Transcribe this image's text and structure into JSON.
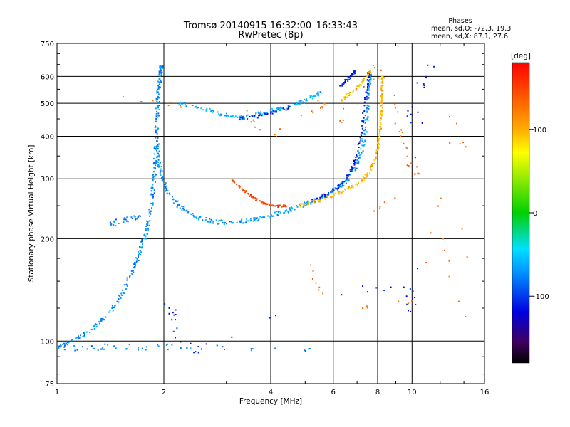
{
  "header": {
    "title": "Tromsø 20140915 16:32:00–16:33:43",
    "subtitle": "RwPretec (8p)",
    "phase_box": {
      "heading": "Phases",
      "line_o": "mean, sd,O: -72.3, 19.3",
      "line_x": "mean, sd,X:  87.1, 27.6"
    }
  },
  "chart_data": {
    "type": "scatter",
    "xlabel": "Frequency [MHz]",
    "ylabel": "Stationary phase Virtual Height [km]",
    "x_scale": "log",
    "y_scale": "log",
    "xlim": [
      1,
      16
    ],
    "ylim": [
      75,
      750
    ],
    "x_ticks": [
      {
        "value": 1,
        "label": "1"
      },
      {
        "value": 2,
        "label": "2"
      },
      {
        "value": 4,
        "label": "4"
      },
      {
        "value": 6,
        "label": "6"
      },
      {
        "value": 8,
        "label": "8"
      },
      {
        "value": 10,
        "label": "10"
      },
      {
        "value": 16,
        "label": "16"
      }
    ],
    "y_ticks": [
      {
        "value": 75,
        "label": "75"
      },
      {
        "value": 100,
        "label": "100"
      },
      {
        "value": 200,
        "label": "200"
      },
      {
        "value": 300,
        "label": "300"
      },
      {
        "value": 400,
        "label": "400"
      },
      {
        "value": 500,
        "label": "500"
      },
      {
        "value": 600,
        "label": "600"
      },
      {
        "value": 750,
        "label": "750"
      }
    ],
    "grid": true,
    "colorbar": {
      "label": "[deg]",
      "range": [
        -180,
        180
      ],
      "ticks": [
        {
          "value": 100,
          "label": "100"
        },
        {
          "value": 0,
          "label": "0"
        },
        {
          "value": -100,
          "label": "-100"
        }
      ]
    },
    "traces": [
      {
        "phase": -75,
        "spread_f": 0.012,
        "spread_h": 0.012,
        "density": 6,
        "points": [
          [
            1.0,
            95
          ],
          [
            1.1,
            100
          ],
          [
            1.25,
            108
          ],
          [
            1.4,
            120
          ],
          [
            1.55,
            142
          ],
          [
            1.65,
            165
          ],
          [
            1.72,
            185
          ],
          [
            1.78,
            205
          ],
          [
            1.82,
            230
          ],
          [
            1.86,
            270
          ],
          [
            1.88,
            310
          ],
          [
            1.9,
            360
          ],
          [
            1.91,
            420
          ],
          [
            1.92,
            480
          ],
          [
            1.93,
            540
          ],
          [
            1.95,
            600
          ],
          [
            1.97,
            640
          ]
        ]
      },
      {
        "phase": -70,
        "spread_f": 0.01,
        "spread_h": 0.015,
        "density": 6,
        "points": [
          [
            1.92,
            380
          ],
          [
            1.94,
            330
          ],
          [
            1.98,
            300
          ],
          [
            2.05,
            275
          ],
          [
            2.2,
            250
          ],
          [
            2.45,
            232
          ],
          [
            2.8,
            224
          ],
          [
            3.2,
            223
          ],
          [
            3.6,
            227
          ],
          [
            4.0,
            234
          ],
          [
            4.5,
            243
          ],
          [
            5.0,
            252
          ],
          [
            5.5,
            262
          ],
          [
            6.0,
            276
          ],
          [
            6.5,
            295
          ],
          [
            6.9,
            320
          ],
          [
            7.2,
            360
          ],
          [
            7.4,
            420
          ],
          [
            7.5,
            480
          ],
          [
            7.55,
            540
          ],
          [
            7.6,
            600
          ]
        ]
      },
      {
        "phase": -110,
        "spread_f": 0.006,
        "spread_h": 0.01,
        "density": 4,
        "points": [
          [
            5.2,
            258
          ],
          [
            5.8,
            270
          ],
          [
            6.2,
            285
          ],
          [
            6.6,
            305
          ],
          [
            6.9,
            335
          ],
          [
            7.1,
            380
          ],
          [
            7.25,
            430
          ],
          [
            7.35,
            490
          ],
          [
            7.45,
            550
          ],
          [
            7.55,
            610
          ]
        ]
      },
      {
        "phase": 95,
        "spread_f": 0.006,
        "spread_h": 0.012,
        "density": 5,
        "points": [
          [
            4.8,
            250
          ],
          [
            5.4,
            258
          ],
          [
            6.0,
            268
          ],
          [
            6.6,
            280
          ],
          [
            7.2,
            295
          ],
          [
            7.6,
            315
          ],
          [
            7.9,
            345
          ],
          [
            8.05,
            380
          ],
          [
            8.15,
            420
          ],
          [
            8.2,
            470
          ],
          [
            8.22,
            520
          ],
          [
            8.24,
            560
          ],
          [
            8.25,
            600
          ]
        ]
      },
      {
        "phase": 150,
        "spread_f": 0.006,
        "spread_h": 0.006,
        "density": 4,
        "points": [
          [
            3.1,
            300
          ],
          [
            3.3,
            282
          ],
          [
            3.5,
            268
          ],
          [
            3.7,
            258
          ],
          [
            3.9,
            252
          ],
          [
            4.2,
            249
          ],
          [
            4.4,
            250
          ]
        ]
      },
      {
        "phase": -60,
        "spread_f": 0.012,
        "spread_h": 0.012,
        "density": 4,
        "points": [
          [
            2.2,
            500
          ],
          [
            2.4,
            490
          ],
          [
            2.7,
            475
          ],
          [
            3.0,
            460
          ],
          [
            3.3,
            455
          ],
          [
            3.6,
            462
          ],
          [
            3.9,
            472
          ],
          [
            4.2,
            480
          ],
          [
            4.5,
            490
          ],
          [
            4.9,
            505
          ],
          [
            5.2,
            520
          ],
          [
            5.5,
            535
          ]
        ]
      },
      {
        "phase": -105,
        "spread_f": 0.006,
        "spread_h": 0.01,
        "density": 3,
        "points": [
          [
            3.2,
            450
          ],
          [
            3.5,
            455
          ],
          [
            3.8,
            460
          ],
          [
            4.1,
            470
          ],
          [
            4.5,
            485
          ]
        ]
      },
      {
        "phase": -110,
        "spread_f": 0.006,
        "spread_h": 0.01,
        "density": 4,
        "points": [
          [
            6.3,
            560
          ],
          [
            6.5,
            580
          ],
          [
            6.7,
            600
          ],
          [
            6.9,
            620
          ]
        ]
      },
      {
        "phase": 95,
        "spread_f": 0.006,
        "spread_h": 0.01,
        "density": 4,
        "points": [
          [
            6.3,
            510
          ],
          [
            6.6,
            530
          ],
          [
            7.0,
            555
          ],
          [
            7.3,
            585
          ],
          [
            7.6,
            620
          ]
        ]
      },
      {
        "phase": -75,
        "spread_f": 0.01,
        "spread_h": 0.02,
        "density": 3,
        "points": [
          [
            1.4,
            220
          ],
          [
            1.5,
            225
          ],
          [
            1.6,
            228
          ],
          [
            1.7,
            230
          ]
        ]
      },
      {
        "phase": -75,
        "spread_f": 0.02,
        "spread_h": 0.02,
        "density": 3,
        "points": [
          [
            1.05,
            95
          ],
          [
            1.3,
            96
          ],
          [
            1.5,
            96
          ],
          [
            1.9,
            96
          ],
          [
            2.5,
            96
          ],
          [
            5.1,
            95
          ]
        ]
      },
      {
        "phase": 130,
        "spread_f": 0.03,
        "spread_h": 0.02,
        "density": 2,
        "points": [
          [
            1.4,
            530
          ],
          [
            3.3,
            470
          ],
          [
            4.0,
            400
          ],
          [
            5.5,
            500
          ],
          [
            6.2,
            440
          ],
          [
            8.3,
            640
          ],
          [
            9.2,
            420
          ],
          [
            9.8,
            340
          ],
          [
            10.3,
            300
          ],
          [
            5.0,
            165
          ],
          [
            6.0,
            125
          ],
          [
            10.5,
            130
          ],
          [
            13.5,
            610
          ],
          [
            14.5,
            100
          ],
          [
            12.0,
            200
          ],
          [
            8.0,
            640
          ]
        ]
      },
      {
        "phase": -110,
        "spread_f": 0.03,
        "spread_h": 0.03,
        "density": 2,
        "points": [
          [
            2.0,
            140
          ],
          [
            2.1,
            120
          ],
          [
            2.2,
            98
          ],
          [
            2.5,
            95
          ],
          [
            6.8,
            145
          ],
          [
            9.9,
            140
          ],
          [
            10.0,
            118
          ],
          [
            10.5,
            580
          ],
          [
            11.5,
            640
          ],
          [
            9.9,
            450
          ]
        ]
      }
    ]
  }
}
